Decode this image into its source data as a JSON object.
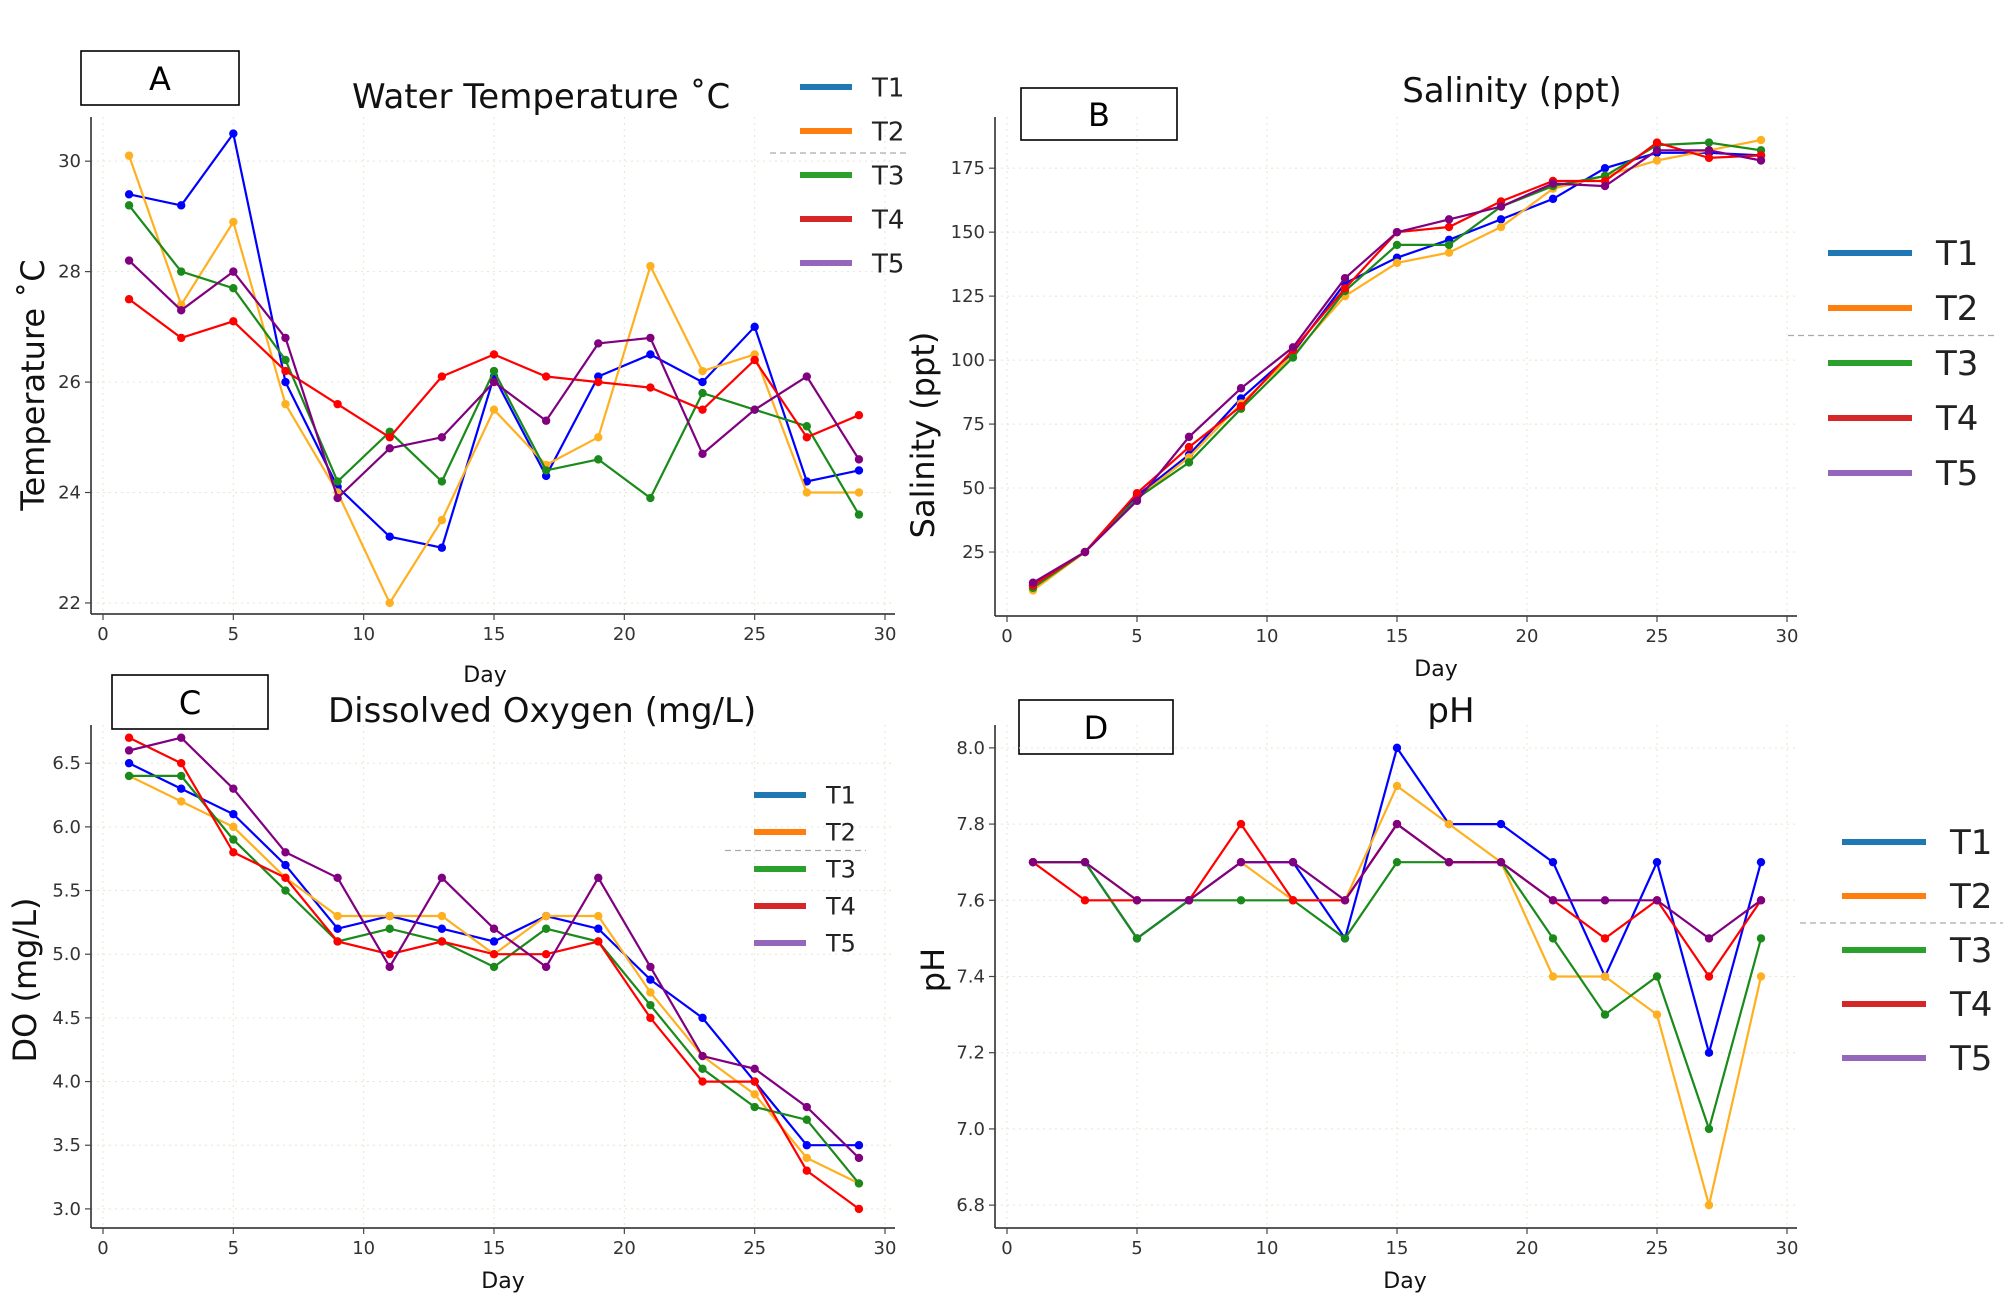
{
  "panels": [
    {
      "letter": "A",
      "title": "Water Temperature  ˚C",
      "xlabel": "Day",
      "ylabel": "Temperature  ˚C",
      "legend": [
        "T1",
        "T2",
        "T3",
        "T4",
        "T5"
      ]
    },
    {
      "letter": "B",
      "title": "Salinity (ppt)",
      "xlabel": "Day",
      "ylabel": "Salinity (ppt)",
      "legend": [
        "T1",
        "T2",
        "T3",
        "T4",
        "T5"
      ]
    },
    {
      "letter": "C",
      "title": "Dissolved Oxygen (mg/L)",
      "xlabel": "Day",
      "ylabel": "DO  (mg/L)",
      "legend": [
        "T1",
        "T2",
        "T3",
        "T4",
        "T5"
      ]
    },
    {
      "letter": "D",
      "title": "pH",
      "xlabel": "Day",
      "ylabel": "pH",
      "legend": [
        "T1",
        "T2",
        "T3",
        "T4",
        "T5"
      ]
    }
  ],
  "colors": {
    "legend": [
      "#1f77b4",
      "#ff7f0e",
      "#2ca02c",
      "#d62728",
      "#9467bd"
    ],
    "markers": [
      "#0000ff",
      "#ffb020",
      "#1a8a1a",
      "#ff0000",
      "#800080"
    ]
  },
  "chart_data": [
    {
      "type": "line",
      "title": "Water Temperature  ˚C",
      "xlabel": "Day",
      "ylabel": "Temperature  ˚C",
      "xlim": [
        0,
        30
      ],
      "ylim": [
        21.8,
        30.8
      ],
      "xticks": [
        0,
        5,
        10,
        15,
        20,
        25,
        30
      ],
      "yticks": [
        22,
        24,
        26,
        28,
        30
      ],
      "x": [
        1,
        3,
        5,
        7,
        9,
        11,
        13,
        15,
        17,
        19,
        21,
        23,
        25,
        27,
        29
      ],
      "series": [
        {
          "name": "T1",
          "values": [
            29.4,
            29.2,
            30.5,
            26.0,
            24.1,
            23.2,
            23.0,
            26.1,
            24.3,
            26.1,
            26.5,
            26.0,
            27.0,
            24.2,
            24.4
          ]
        },
        {
          "name": "T2",
          "values": [
            30.1,
            27.4,
            28.9,
            25.6,
            24.0,
            22.0,
            23.5,
            25.5,
            24.5,
            25.0,
            28.1,
            26.2,
            26.5,
            24.0,
            24.0
          ]
        },
        {
          "name": "T3",
          "values": [
            29.2,
            28.0,
            27.7,
            26.4,
            24.2,
            25.1,
            24.2,
            26.2,
            24.4,
            24.6,
            23.9,
            25.8,
            25.5,
            25.2,
            23.6
          ]
        },
        {
          "name": "T4",
          "values": [
            27.5,
            26.8,
            27.1,
            26.2,
            25.6,
            25.0,
            26.1,
            26.5,
            26.1,
            26.0,
            25.9,
            25.5,
            26.4,
            25.0,
            25.4
          ]
        },
        {
          "name": "T5",
          "values": [
            28.2,
            27.3,
            28.0,
            26.8,
            23.9,
            24.8,
            25.0,
            26.0,
            25.3,
            26.7,
            26.8,
            24.7,
            25.5,
            26.1,
            24.6
          ]
        }
      ]
    },
    {
      "type": "line",
      "title": "Salinity (ppt)",
      "xlabel": "Day",
      "ylabel": "Salinity (ppt)",
      "xlim": [
        0,
        30
      ],
      "ylim": [
        0,
        195
      ],
      "xticks": [
        0,
        5,
        10,
        15,
        20,
        25,
        30
      ],
      "yticks": [
        25,
        50,
        75,
        100,
        125,
        150,
        175
      ],
      "x": [
        1,
        3,
        5,
        7,
        9,
        11,
        13,
        15,
        17,
        19,
        21,
        23,
        25,
        27,
        29
      ],
      "series": [
        {
          "name": "T1",
          "values": [
            12,
            25,
            47,
            63,
            85,
            103,
            130,
            140,
            147,
            155,
            163,
            175,
            181,
            181,
            180
          ]
        },
        {
          "name": "T2",
          "values": [
            10,
            25,
            46,
            62,
            83,
            102,
            125,
            138,
            142,
            152,
            167,
            172,
            178,
            182,
            186
          ]
        },
        {
          "name": "T3",
          "values": [
            11,
            25,
            46,
            60,
            81,
            101,
            127,
            145,
            145,
            160,
            168,
            172,
            184,
            185,
            182
          ]
        },
        {
          "name": "T4",
          "values": [
            12,
            25,
            48,
            66,
            82,
            104,
            128,
            150,
            152,
            162,
            170,
            170,
            185,
            179,
            180
          ]
        },
        {
          "name": "T5",
          "values": [
            13,
            25,
            45,
            70,
            89,
            105,
            132,
            150,
            155,
            160,
            169,
            168,
            182,
            182,
            178
          ]
        }
      ]
    },
    {
      "type": "line",
      "title": "Dissolved Oxygen (mg/L)",
      "xlabel": "Day",
      "ylabel": "DO  (mg/L)",
      "xlim": [
        0,
        30
      ],
      "ylim": [
        2.85,
        6.8
      ],
      "xticks": [
        0,
        5,
        10,
        15,
        20,
        25,
        30
      ],
      "yticks": [
        3.0,
        3.5,
        4.0,
        4.5,
        5.0,
        5.5,
        6.0,
        6.5
      ],
      "x": [
        1,
        3,
        5,
        7,
        9,
        11,
        13,
        15,
        17,
        19,
        21,
        23,
        25,
        27,
        29
      ],
      "series": [
        {
          "name": "T1",
          "values": [
            6.5,
            6.3,
            6.1,
            5.7,
            5.2,
            5.3,
            5.2,
            5.1,
            5.3,
            5.2,
            4.8,
            4.5,
            4.0,
            3.5,
            3.5
          ]
        },
        {
          "name": "T2",
          "values": [
            6.4,
            6.2,
            6.0,
            5.6,
            5.3,
            5.3,
            5.3,
            5.0,
            5.3,
            5.3,
            4.7,
            4.2,
            3.9,
            3.4,
            3.2
          ]
        },
        {
          "name": "T3",
          "values": [
            6.4,
            6.4,
            5.9,
            5.5,
            5.1,
            5.2,
            5.1,
            4.9,
            5.2,
            5.1,
            4.6,
            4.1,
            3.8,
            3.7,
            3.2
          ]
        },
        {
          "name": "T4",
          "values": [
            6.7,
            6.5,
            5.8,
            5.6,
            5.1,
            5.0,
            5.1,
            5.0,
            5.0,
            5.1,
            4.5,
            4.0,
            4.0,
            3.3,
            3.0
          ]
        },
        {
          "name": "T5",
          "values": [
            6.6,
            6.7,
            6.3,
            5.8,
            5.6,
            4.9,
            5.6,
            5.2,
            4.9,
            5.6,
            4.9,
            4.2,
            4.1,
            3.8,
            3.4
          ]
        }
      ]
    },
    {
      "type": "line",
      "title": "pH",
      "xlabel": "Day",
      "ylabel": "pH",
      "xlim": [
        0,
        30
      ],
      "ylim": [
        6.74,
        8.06
      ],
      "xticks": [
        0,
        5,
        10,
        15,
        20,
        25,
        30
      ],
      "yticks": [
        6.8,
        7.0,
        7.2,
        7.4,
        7.6,
        7.8,
        8.0
      ],
      "x": [
        1,
        3,
        5,
        7,
        9,
        11,
        13,
        15,
        17,
        19,
        21,
        23,
        25,
        27,
        29
      ],
      "series": [
        {
          "name": "T1",
          "values": [
            7.7,
            7.7,
            7.5,
            7.6,
            7.7,
            7.7,
            7.5,
            8.0,
            7.8,
            7.8,
            7.7,
            7.4,
            7.7,
            7.2,
            7.7
          ]
        },
        {
          "name": "T2",
          "values": [
            7.7,
            7.7,
            7.6,
            7.6,
            7.7,
            7.6,
            7.6,
            7.9,
            7.8,
            7.7,
            7.4,
            7.4,
            7.3,
            6.8,
            7.4
          ]
        },
        {
          "name": "T3",
          "values": [
            7.7,
            7.7,
            7.5,
            7.6,
            7.6,
            7.6,
            7.5,
            7.7,
            7.7,
            7.7,
            7.5,
            7.3,
            7.4,
            7.0,
            7.5
          ]
        },
        {
          "name": "T4",
          "values": [
            7.7,
            7.6,
            7.6,
            7.6,
            7.8,
            7.6,
            7.6,
            7.8,
            7.7,
            7.7,
            7.6,
            7.5,
            7.6,
            7.4,
            7.6
          ]
        },
        {
          "name": "T5",
          "values": [
            7.7,
            7.7,
            7.6,
            7.6,
            7.7,
            7.7,
            7.6,
            7.8,
            7.7,
            7.7,
            7.6,
            7.6,
            7.6,
            7.5,
            7.6
          ]
        }
      ]
    }
  ]
}
